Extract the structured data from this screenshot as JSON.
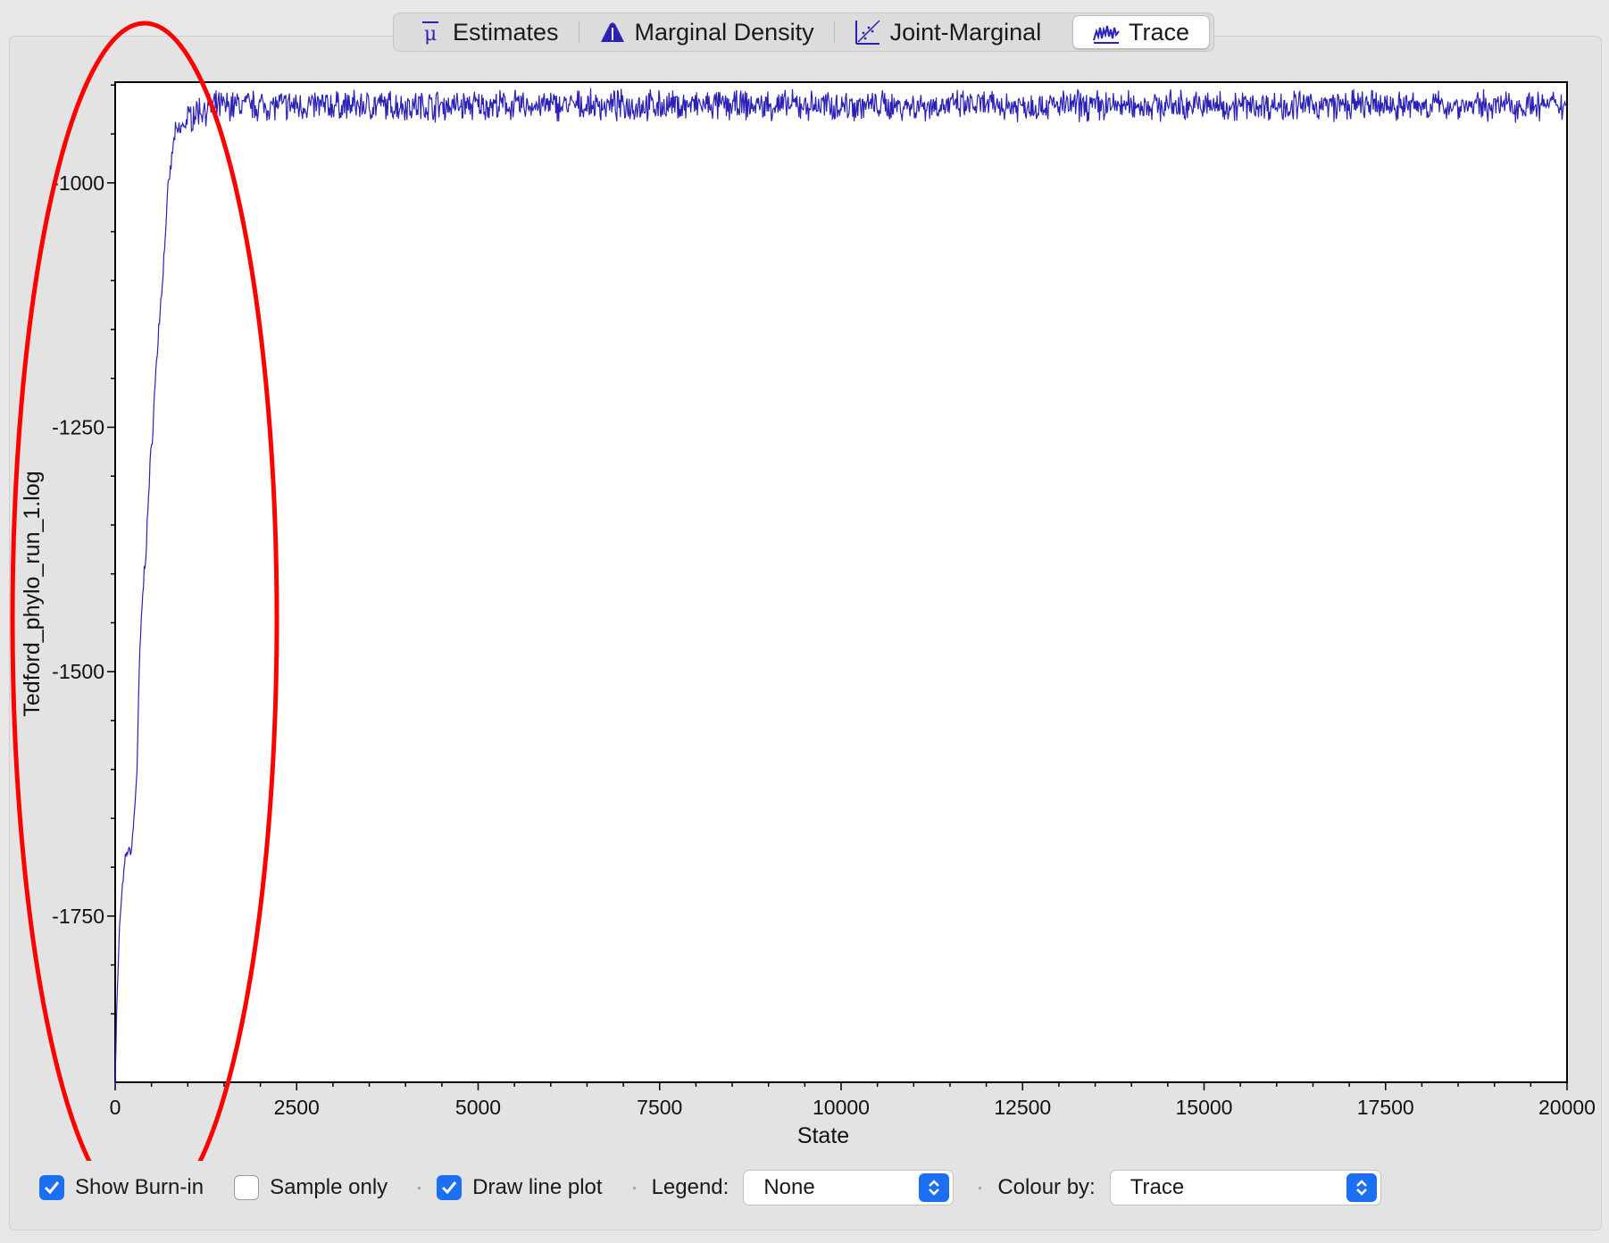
{
  "tabs": [
    {
      "label": "Estimates",
      "icon": "mu-bar-icon"
    },
    {
      "label": "Marginal Density",
      "icon": "density-peak-icon"
    },
    {
      "label": "Joint-Marginal",
      "icon": "scatter-diagonal-icon"
    },
    {
      "label": "Trace",
      "icon": "trace-wave-icon",
      "active": true
    }
  ],
  "controls": {
    "show_burnin": {
      "label": "Show Burn-in",
      "checked": true
    },
    "sample_only": {
      "label": "Sample only",
      "checked": false
    },
    "draw_line_plot": {
      "label": "Draw line plot",
      "checked": true
    },
    "legend_label": "Legend:",
    "legend_value": "None",
    "colour_by_label": "Colour by:",
    "colour_by_value": "Trace"
  },
  "colors": {
    "trace": "#2b22b5",
    "annotation": "#ff0000",
    "accent": "#1d6ff2"
  },
  "chart_data": {
    "type": "line",
    "xlabel": "State",
    "ylabel": "Tedford_phylo_run_1.log",
    "xlim": [
      0,
      20000
    ],
    "ylim": [
      -1920,
      -897
    ],
    "x_ticks": [
      0,
      2500,
      5000,
      7500,
      10000,
      12500,
      15000,
      17500,
      20000
    ],
    "y_ticks": [
      -1000,
      -1250,
      -1500,
      -1750
    ],
    "series": [
      {
        "points": [
          [
            0,
            -1920
          ],
          [
            20,
            -1850
          ],
          [
            60,
            -1760
          ],
          [
            100,
            -1720
          ],
          [
            140,
            -1690
          ],
          [
            180,
            -1682
          ],
          [
            220,
            -1685
          ],
          [
            260,
            -1650
          ],
          [
            300,
            -1600
          ],
          [
            340,
            -1480
          ],
          [
            380,
            -1420
          ],
          [
            420,
            -1380
          ],
          [
            460,
            -1320
          ],
          [
            500,
            -1270
          ],
          [
            540,
            -1220
          ],
          [
            580,
            -1170
          ],
          [
            620,
            -1130
          ],
          [
            660,
            -1090
          ],
          [
            700,
            -1040
          ],
          [
            740,
            -1000
          ],
          [
            780,
            -975
          ],
          [
            820,
            -950
          ],
          [
            900,
            -945
          ],
          [
            1000,
            -935
          ],
          [
            1100,
            -928
          ],
          [
            1200,
            -925
          ],
          [
            1400,
            -922
          ],
          [
            1700,
            -920
          ],
          [
            2000,
            -921
          ],
          [
            20000,
            -921
          ]
        ],
        "noise_amplitude": 12
      }
    ],
    "annotation": "ellipse around burn-in region (0 to ~1300 states)"
  }
}
